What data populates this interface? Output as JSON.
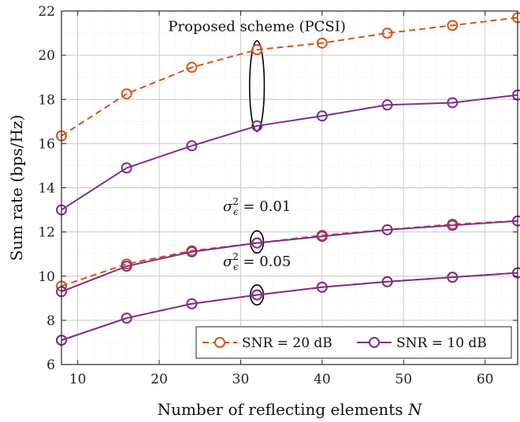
{
  "chart_data": {
    "type": "line",
    "title": "",
    "xlabel": "Number of reflecting elements",
    "xlabel_var": "N",
    "ylabel": "Sum rate (bps/Hz)",
    "xlim": [
      8,
      64
    ],
    "ylim": [
      6,
      22
    ],
    "xticks": [
      10,
      20,
      30,
      40,
      50,
      60
    ],
    "yticks": [
      6,
      8,
      10,
      12,
      14,
      16,
      18,
      20,
      22
    ],
    "grid": true,
    "legend_position": "bottom-right",
    "x": [
      8,
      16,
      24,
      32,
      40,
      48,
      56,
      64
    ],
    "series": [
      {
        "name": "SNR = 20 dB",
        "group": "PCSI",
        "color": "#D95319",
        "dash": "dashed",
        "values": [
          16.35,
          18.25,
          19.45,
          20.25,
          20.55,
          21.0,
          21.35,
          21.7
        ]
      },
      {
        "name": "SNR = 10 dB",
        "group": "PCSI",
        "color": "#7E2F8E",
        "dash": "solid",
        "values": [
          13.0,
          14.9,
          15.9,
          16.8,
          17.25,
          17.75,
          17.85,
          18.2
        ]
      },
      {
        "name": "SNR = 20 dB",
        "group": "0.01",
        "color": "#D95319",
        "dash": "dashed",
        "values": [
          9.55,
          10.55,
          11.15,
          11.5,
          11.85,
          12.1,
          12.35,
          12.5
        ]
      },
      {
        "name": "SNR = 10 dB",
        "group": "0.01",
        "color": "#7E2F8E",
        "dash": "solid",
        "values": [
          9.3,
          10.45,
          11.1,
          11.5,
          11.8,
          12.1,
          12.3,
          12.5
        ]
      },
      {
        "name": "SNR = 20 dB",
        "group": "0.05",
        "color": "#D95319",
        "dash": "dashed",
        "values": [
          7.1,
          8.1,
          8.75,
          9.15,
          9.5,
          9.75,
          9.95,
          10.15
        ]
      },
      {
        "name": "SNR = 10 dB",
        "group": "0.05",
        "color": "#7E2F8E",
        "dash": "solid",
        "values": [
          7.1,
          8.1,
          8.75,
          9.15,
          9.5,
          9.75,
          9.95,
          10.15
        ]
      }
    ],
    "legend": [
      {
        "label": "SNR = 20 dB",
        "color": "#D95319",
        "dash": "dashed"
      },
      {
        "label": "SNR = 10 dB",
        "color": "#7E2F8E",
        "dash": "solid"
      }
    ],
    "annotations": [
      {
        "text": "Proposed scheme (PCSI)",
        "x": 32,
        "y": 21.1,
        "ellipse": {
          "cx": 32,
          "cy": 18.6,
          "rx": 0.9,
          "ry": 2.05
        }
      },
      {
        "text_prefix": "σ",
        "text_sub": "ϵ",
        "text_sup": "2",
        "text_suffix": " = 0.01",
        "x": 32,
        "y": 12.95,
        "ellipse": {
          "cx": 32,
          "cy": 11.55,
          "rx": 0.8,
          "ry": 0.5
        }
      },
      {
        "text_prefix": "σ",
        "text_sub": "ϵ",
        "text_sup": "2",
        "text_suffix": " = 0.05",
        "x": 32,
        "y": 10.45,
        "ellipse": {
          "cx": 32,
          "cy": 9.15,
          "rx": 0.8,
          "ry": 0.45
        }
      }
    ]
  }
}
